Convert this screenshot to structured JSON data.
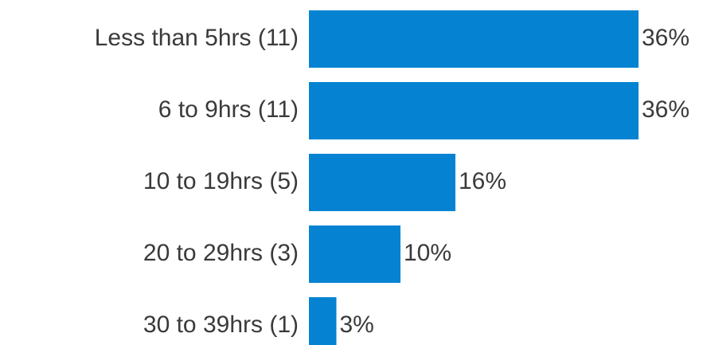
{
  "chart_data": {
    "type": "hbar",
    "categories": [
      "Less than 5hrs (11)",
      "6 to 9hrs (11)",
      "10 to 19hrs (5)",
      "20 to 29hrs (3)",
      "30 to 39hrs (1)"
    ],
    "values": [
      36,
      36,
      16,
      10,
      3
    ],
    "value_labels": [
      "36%",
      "36%",
      "16%",
      "10%",
      "3%"
    ],
    "color": "#0583d2"
  }
}
